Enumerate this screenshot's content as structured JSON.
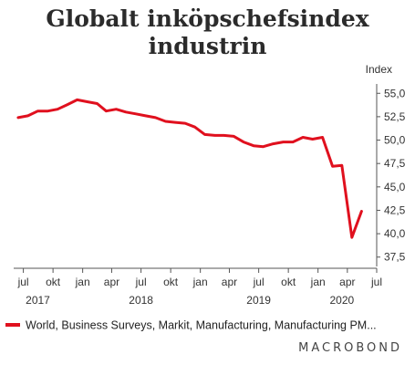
{
  "chart_data": {
    "type": "line",
    "title": "Globalt inköpschefsindex industrin",
    "title_lines": [
      "Globalt inköpschefsindex",
      "industrin"
    ],
    "ylabel": "Index",
    "ylim": [
      36.5,
      56.0
    ],
    "yticks": [
      37.5,
      40.0,
      42.5,
      45.0,
      47.5,
      50.0,
      52.5,
      55.0
    ],
    "ytick_labels": [
      "37,5",
      "40,0",
      "42,5",
      "45,0",
      "47,5",
      "50,0",
      "52,5",
      "55,0"
    ],
    "xrange": [
      "2017-06-01",
      "2020-07-01"
    ],
    "xticks": [
      {
        "date": "2017-07-01",
        "label": "jul"
      },
      {
        "date": "2017-10-01",
        "label": "okt"
      },
      {
        "date": "2018-01-01",
        "label": "jan"
      },
      {
        "date": "2018-04-01",
        "label": "apr"
      },
      {
        "date": "2018-07-01",
        "label": "jul"
      },
      {
        "date": "2018-10-01",
        "label": "okt"
      },
      {
        "date": "2019-01-01",
        "label": "jan"
      },
      {
        "date": "2019-04-01",
        "label": "apr"
      },
      {
        "date": "2019-07-01",
        "label": "jul"
      },
      {
        "date": "2019-10-01",
        "label": "okt"
      },
      {
        "date": "2020-01-01",
        "label": "jan"
      },
      {
        "date": "2020-04-01",
        "label": "apr"
      },
      {
        "date": "2020-07-01",
        "label": "jul"
      }
    ],
    "year_labels": [
      {
        "date": "2017-08-15",
        "label": "2017"
      },
      {
        "date": "2018-07-01",
        "label": "2018"
      },
      {
        "date": "2019-07-01",
        "label": "2019"
      },
      {
        "date": "2020-03-15",
        "label": "2020"
      }
    ],
    "grid": false,
    "legend_position": "bottom",
    "series": [
      {
        "name": "World, Business Surveys, Markit, Manufacturing, Manufacturing PM...",
        "color": "#e0101e",
        "x": [
          "2017-06-15",
          "2017-07-15",
          "2017-08-15",
          "2017-09-15",
          "2017-10-15",
          "2017-11-15",
          "2017-12-15",
          "2018-01-15",
          "2018-02-15",
          "2018-03-15",
          "2018-04-15",
          "2018-05-15",
          "2018-06-15",
          "2018-07-15",
          "2018-08-15",
          "2018-09-15",
          "2018-10-15",
          "2018-11-15",
          "2018-12-15",
          "2019-01-15",
          "2019-02-15",
          "2019-03-15",
          "2019-04-15",
          "2019-05-15",
          "2019-06-15",
          "2019-07-15",
          "2019-08-15",
          "2019-09-15",
          "2019-10-15",
          "2019-11-15",
          "2019-12-15",
          "2020-01-15",
          "2020-02-15",
          "2020-03-15",
          "2020-04-15",
          "2020-05-15"
        ],
        "values": [
          52.4,
          52.6,
          53.1,
          53.1,
          53.3,
          53.8,
          54.3,
          54.1,
          53.9,
          53.1,
          53.3,
          53.0,
          52.8,
          52.6,
          52.4,
          52.0,
          51.9,
          51.8,
          51.4,
          50.6,
          50.5,
          50.5,
          50.4,
          49.8,
          49.4,
          49.3,
          49.6,
          49.8,
          49.8,
          50.3,
          50.1,
          50.3,
          47.2,
          47.3,
          39.6,
          42.4
        ]
      }
    ]
  },
  "brand": "MACROBOND"
}
